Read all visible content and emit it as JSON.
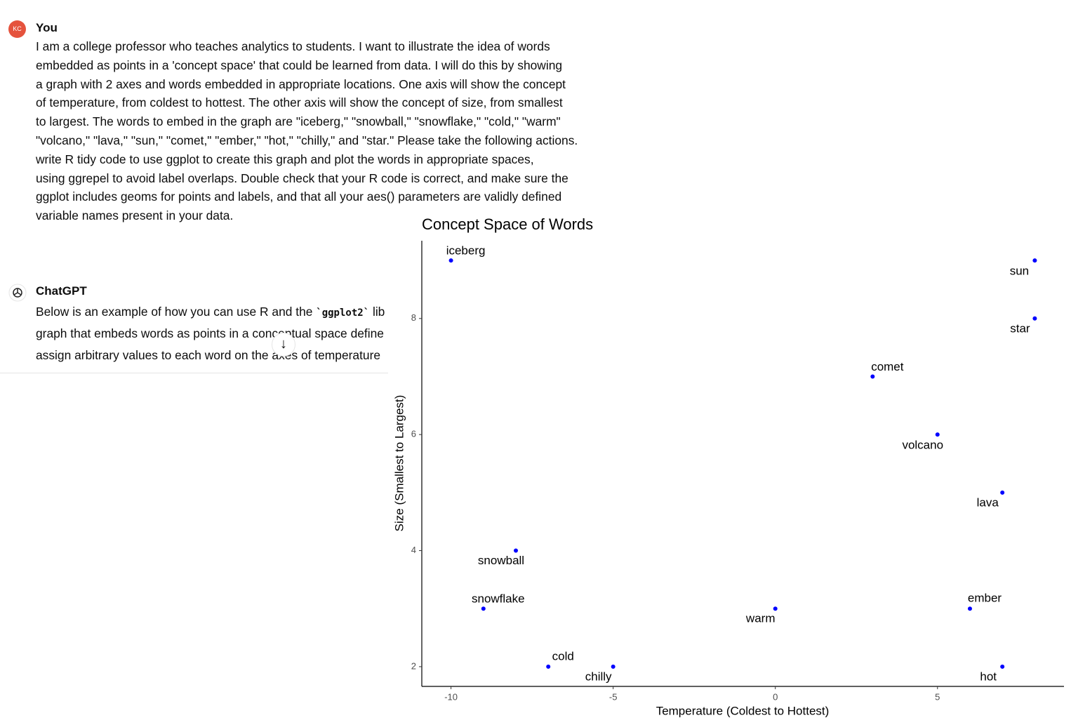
{
  "user": {
    "avatar": "KC",
    "name": "You",
    "lines": [
      "I am a college professor who teaches analytics to students. I want to illustrate the idea of words",
      "embedded as points in a 'concept space' that could be learned from data. I will do this by showing",
      "a graph with 2 axes and words embedded in appropriate locations. One axis will show the concept",
      "of temperature, from coldest to hottest. The other axis will show the concept of size, from smallest",
      "to largest. The words to embed in the graph are \"iceberg,\" \"snowball,\" \"snowflake,\" \"cold,\" \"warm\"",
      "\"volcano,\" \"lava,\" \"sun,\" \"comet,\" \"ember,\" \"hot,\" \"chilly,\" and \"star.\" Please take the following actions.",
      "write R tidy code to use ggplot to create this graph and plot the words in appropriate spaces,",
      "using ggrepel to avoid label overlaps. Double check that your R code is correct, and make sure the",
      "ggplot includes geoms for points and labels, and that all your aes() parameters are validly defined",
      "variable names present in your data."
    ]
  },
  "assistant": {
    "name": "ChatGPT",
    "first_line": [
      "Below is an example of how you can use R and the ",
      "`ggplot2`",
      " lib"
    ],
    "lines": [
      "graph that embeds words as points in a conceptual space define",
      "assign arbitrary values to each word on the axes of temperature"
    ]
  },
  "chart_data": {
    "type": "scatter",
    "title": "Concept Space of Words",
    "x_label": "Temperature (Coldest to Hottest)",
    "y_label": "Size (Smallest to Largest)",
    "labels": [
      "iceberg",
      "sun",
      "star",
      "comet",
      "volcano",
      "lava",
      "snowball",
      "snowflake",
      "warm",
      "ember",
      "cold",
      "chilly",
      "hot"
    ],
    "x": [
      -10,
      8,
      8,
      3,
      5,
      7,
      -8,
      -9,
      0,
      6,
      -7,
      -5,
      7
    ],
    "values": [
      9,
      9,
      8,
      7,
      6,
      5,
      4,
      3,
      3,
      3,
      2,
      2,
      2
    ],
    "color": "#0000ff",
    "xlim": [
      -10.9,
      8.9
    ],
    "ylim": [
      1.66,
      9.34
    ],
    "xticks": [
      -10,
      -5,
      0,
      5
    ],
    "yticks": [
      2,
      4,
      6,
      8
    ],
    "grid": false
  }
}
